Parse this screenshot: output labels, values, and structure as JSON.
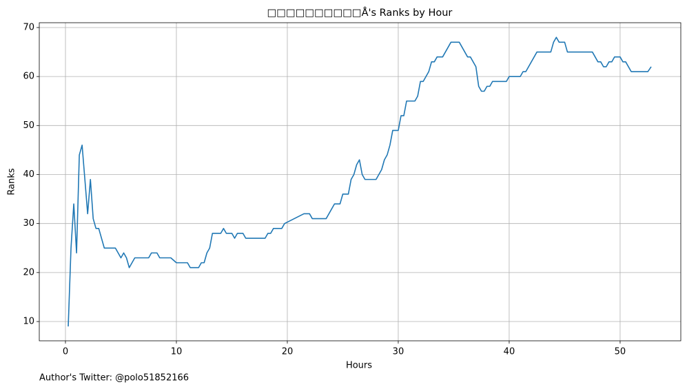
{
  "chart_data": {
    "type": "line",
    "title": "□□□□□□□□□□Å's Ranks by Hour",
    "xlabel": "Hours",
    "ylabel": "Ranks",
    "footer": "Author's Twitter: @polo51852166",
    "xlim": [
      -2.36,
      55.47
    ],
    "ylim": [
      6.07,
      70.98
    ],
    "xticks": [
      0,
      10,
      20,
      30,
      40,
      50
    ],
    "yticks": [
      10,
      20,
      30,
      40,
      50,
      60,
      70
    ],
    "grid": true,
    "x": [
      0.25,
      0.5,
      0.75,
      1.0,
      1.25,
      1.5,
      1.75,
      2.0,
      2.25,
      2.5,
      2.75,
      3.0,
      3.5,
      4.0,
      4.5,
      5.0,
      5.25,
      5.5,
      5.75,
      6.0,
      6.25,
      7.0,
      7.5,
      7.75,
      8.25,
      8.5,
      9.5,
      10.0,
      11.0,
      11.25,
      12.0,
      12.25,
      12.5,
      12.75,
      13.0,
      13.25,
      14.0,
      14.25,
      14.5,
      15.0,
      15.25,
      15.5,
      16.0,
      16.25,
      18.0,
      18.25,
      18.5,
      18.75,
      19.5,
      19.75,
      21.5,
      22.0,
      22.25,
      23.5,
      24.25,
      24.75,
      25.0,
      25.5,
      25.75,
      26.0,
      26.25,
      26.5,
      26.75,
      27.0,
      28.0,
      28.5,
      28.75,
      29.0,
      29.25,
      29.5,
      30.0,
      30.25,
      30.5,
      30.75,
      31.5,
      31.75,
      32.0,
      32.25,
      32.75,
      33.0,
      33.25,
      33.5,
      34.0,
      34.75,
      35.5,
      36.25,
      36.5,
      37.0,
      37.25,
      37.5,
      37.75,
      38.0,
      38.25,
      38.5,
      39.0,
      39.75,
      40.0,
      41.0,
      41.25,
      41.5,
      42.5,
      43.75,
      44.0,
      44.25,
      44.5,
      45.0,
      45.25,
      47.5,
      47.75,
      48.0,
      48.25,
      48.5,
      48.75,
      49.0,
      49.25,
      49.5,
      50.0,
      50.25,
      50.5,
      51.0,
      52.5,
      52.8
    ],
    "series": [
      {
        "name": "Ranks",
        "color": "#1f77b4",
        "values": [
          9,
          25,
          34,
          24,
          44,
          46,
          39,
          32,
          39,
          31,
          29,
          29,
          25,
          25,
          25,
          23,
          24,
          23,
          21,
          22,
          23,
          23,
          23,
          24,
          24,
          23,
          23,
          22,
          22,
          21,
          21,
          22,
          22,
          24,
          25,
          28,
          28,
          29,
          28,
          28,
          27,
          28,
          28,
          27,
          27,
          28,
          28,
          29,
          29,
          30,
          32,
          32,
          31,
          31,
          34,
          34,
          36,
          36,
          39,
          40,
          42,
          43,
          40,
          39,
          39,
          41,
          43,
          44,
          46,
          49,
          49,
          52,
          52,
          55,
          55,
          56,
          59,
          59,
          61,
          63,
          63,
          64,
          64,
          67,
          67,
          64,
          64,
          62,
          58,
          57,
          57,
          58,
          58,
          59,
          59,
          59,
          60,
          60,
          61,
          61,
          65,
          65,
          67,
          68,
          67,
          67,
          65,
          65,
          64,
          63,
          63,
          62,
          62,
          63,
          63,
          64,
          64,
          63,
          63,
          61,
          61,
          62
        ]
      }
    ]
  }
}
